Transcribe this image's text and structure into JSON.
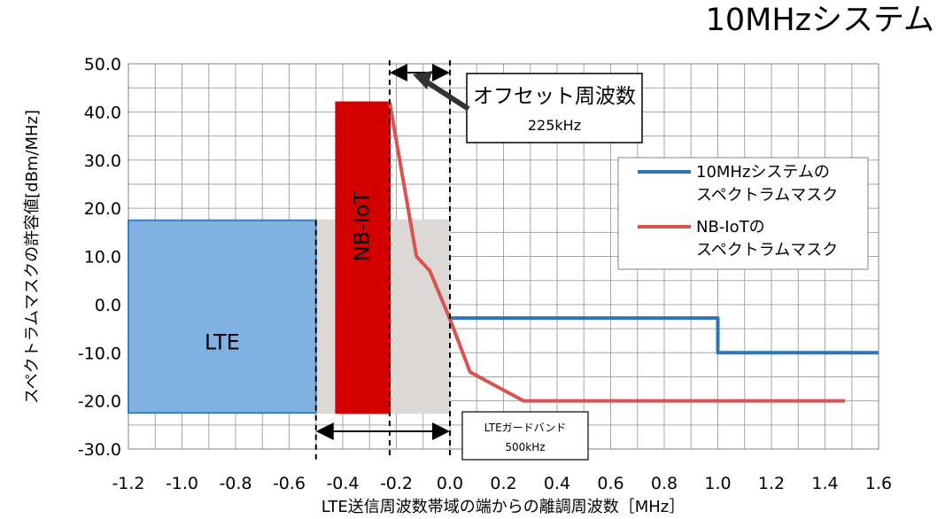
{
  "chart_data": {
    "type": "line",
    "title": "10MHzシステム",
    "xlabel": "LTE送信周波数帯域の端からの離調周波数［MHz］",
    "ylabel": "スペクトラムマスクの許容値[dBm/MHz]",
    "xlim": [
      -1.2,
      1.6
    ],
    "ylim": [
      -30,
      50
    ],
    "x_ticks": [
      "-1.2",
      "-1.0",
      "-0.8",
      "-0.6",
      "-0.4",
      "-0.2",
      "0.0",
      "0.2",
      "0.4",
      "0.6",
      "0.8",
      "1.0",
      "1.2",
      "1.4",
      "1.6"
    ],
    "y_ticks": [
      "50.0",
      "40.0",
      "30.0",
      "20.0",
      "10.0",
      "0.0",
      "-10.0",
      "-20.0",
      "-30.0"
    ],
    "grid": true,
    "legend_position": "right",
    "series": [
      {
        "name": "10MHzシステムのスペクトラムマスク",
        "legend_lines": [
          "10MHzシステムの",
          "スペクトラムマスク"
        ],
        "color": "#2e75b6",
        "points": [
          [
            0.0,
            -2.8
          ],
          [
            1.0,
            -2.8
          ],
          [
            1.0,
            -10.0
          ],
          [
            1.6,
            -10.0
          ]
        ]
      },
      {
        "name": "NB-IoTのスペクトラムマスク",
        "legend_lines": [
          "NB-IoTの",
          "スペクトラムマスク"
        ],
        "color": "#d9534f",
        "points": [
          [
            -0.225,
            42.0
          ],
          [
            -0.125,
            10.0
          ],
          [
            -0.075,
            7.0
          ],
          [
            0.0,
            -3.0
          ],
          [
            0.075,
            -14.0
          ],
          [
            0.275,
            -20.0
          ],
          [
            1.475,
            -20.0
          ]
        ]
      }
    ],
    "regions": [
      {
        "name": "LTE",
        "label": "LTE",
        "x": [
          -1.2,
          -0.5
        ],
        "y": [
          -22.5,
          17.5
        ],
        "color": "#7fb2e0",
        "edge": "#3a7fc4"
      },
      {
        "name": "guard",
        "label": "",
        "x": [
          -0.5,
          0.0
        ],
        "y": [
          -22.5,
          17.5
        ],
        "color": "#dcd8d5",
        "edge": "#dcd8d5"
      },
      {
        "name": "NB-IoT",
        "label": "NB-IoT",
        "x": [
          -0.425,
          -0.225
        ],
        "y": [
          -22.5,
          42.0
        ],
        "color": "#d40000",
        "edge": "#d40000"
      }
    ],
    "annotations": {
      "offset": {
        "title": "オフセット周波数",
        "value": "225kHz",
        "x_from": -0.225,
        "x_to": 0.0
      },
      "guard": {
        "title": "LTEガードバンド",
        "value": "500kHz",
        "x_from": -0.5,
        "x_to": 0.0
      }
    }
  }
}
